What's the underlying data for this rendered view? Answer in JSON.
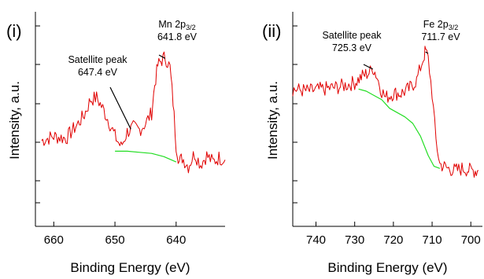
{
  "chart_data": [
    {
      "type": "line",
      "panel_label": "(i)",
      "xlabel": "Binding Energy (eV)",
      "ylabel": "Intensity, a.u.",
      "xlim": [
        663,
        632
      ],
      "x_reversed": true,
      "ylim": [
        0,
        1
      ],
      "y_tick_labels_shown": false,
      "x_ticks": [
        660,
        650,
        640
      ],
      "series": [
        {
          "color": "#e00000",
          "points": [
            [
              662,
              0.4
            ],
            [
              660,
              0.42
            ],
            [
              658,
              0.41
            ],
            [
              656,
              0.48
            ],
            [
              655,
              0.52
            ],
            [
              654,
              0.59
            ],
            [
              653,
              0.6
            ],
            [
              652,
              0.55
            ],
            [
              651,
              0.49
            ],
            [
              650,
              0.42
            ],
            [
              649,
              0.37
            ],
            [
              648,
              0.44
            ],
            [
              647,
              0.46
            ],
            [
              646,
              0.45
            ],
            [
              645,
              0.48
            ],
            [
              644,
              0.53
            ],
            [
              643.5,
              0.66
            ],
            [
              643,
              0.75
            ],
            [
              642.5,
              0.77
            ],
            [
              641.8,
              0.79
            ],
            [
              641,
              0.74
            ],
            [
              640.5,
              0.58
            ],
            [
              640,
              0.38
            ],
            [
              639.5,
              0.3
            ],
            [
              639,
              0.32
            ],
            [
              638,
              0.28
            ],
            [
              637,
              0.34
            ],
            [
              636,
              0.29
            ],
            [
              635,
              0.33
            ],
            [
              634,
              0.3
            ],
            [
              633,
              0.32
            ],
            [
              632,
              0.31
            ]
          ]
        },
        {
          "color": "#22dd22",
          "points": [
            [
              650,
              0.35
            ],
            [
              648,
              0.35
            ],
            [
              646,
              0.345
            ],
            [
              644,
              0.34
            ],
            [
              642,
              0.325
            ],
            [
              640,
              0.3
            ]
          ]
        }
      ],
      "annotations": [
        {
          "lines": [
            "Mn 2p",
            "3/2",
            "641.8 eV"
          ],
          "x": 641.8,
          "y": 0.79
        },
        {
          "lines": [
            "Satellite peak",
            "647.4 eV"
          ],
          "x": 647.4,
          "y": 0.46
        }
      ]
    },
    {
      "type": "line",
      "panel_label": "(ii)",
      "xlabel": "Binding Energy (eV)",
      "ylabel": "Intensity, a.u.",
      "xlim": [
        746,
        697
      ],
      "x_reversed": true,
      "ylim": [
        0,
        1
      ],
      "y_tick_labels_shown": false,
      "x_ticks": [
        740,
        730,
        720,
        710,
        700
      ],
      "series": [
        {
          "color": "#e00000",
          "points": [
            [
              746,
              0.64
            ],
            [
              742,
              0.63
            ],
            [
              738,
              0.64
            ],
            [
              734,
              0.65
            ],
            [
              730,
              0.67
            ],
            [
              728,
              0.7
            ],
            [
              726,
              0.72
            ],
            [
              725.3,
              0.74
            ],
            [
              724.5,
              0.71
            ],
            [
              723,
              0.63
            ],
            [
              722,
              0.6
            ],
            [
              720,
              0.62
            ],
            [
              718,
              0.62
            ],
            [
              716,
              0.64
            ],
            [
              714,
              0.68
            ],
            [
              713,
              0.74
            ],
            [
              712,
              0.8
            ],
            [
              711.7,
              0.82
            ],
            [
              711,
              0.78
            ],
            [
              710,
              0.62
            ],
            [
              709,
              0.4
            ],
            [
              708,
              0.29
            ],
            [
              706,
              0.27
            ],
            [
              704,
              0.26
            ],
            [
              702,
              0.27
            ],
            [
              700,
              0.26
            ],
            [
              698,
              0.26
            ]
          ]
        },
        {
          "color": "#22dd22",
          "points": [
            [
              729,
              0.64
            ],
            [
              727,
              0.63
            ],
            [
              725,
              0.61
            ],
            [
              723,
              0.59
            ],
            [
              721,
              0.55
            ],
            [
              719,
              0.53
            ],
            [
              717,
              0.51
            ],
            [
              715,
              0.48
            ],
            [
              713,
              0.42
            ],
            [
              711,
              0.33
            ],
            [
              709.5,
              0.28
            ],
            [
              708,
              0.27
            ]
          ]
        }
      ],
      "annotations": [
        {
          "lines": [
            "Fe 2p",
            "3/2",
            "711.7 eV"
          ],
          "x": 711.7,
          "y": 0.82
        },
        {
          "lines": [
            "Satellite peak",
            "725.3 eV"
          ],
          "x": 725.3,
          "y": 0.74
        }
      ]
    }
  ]
}
